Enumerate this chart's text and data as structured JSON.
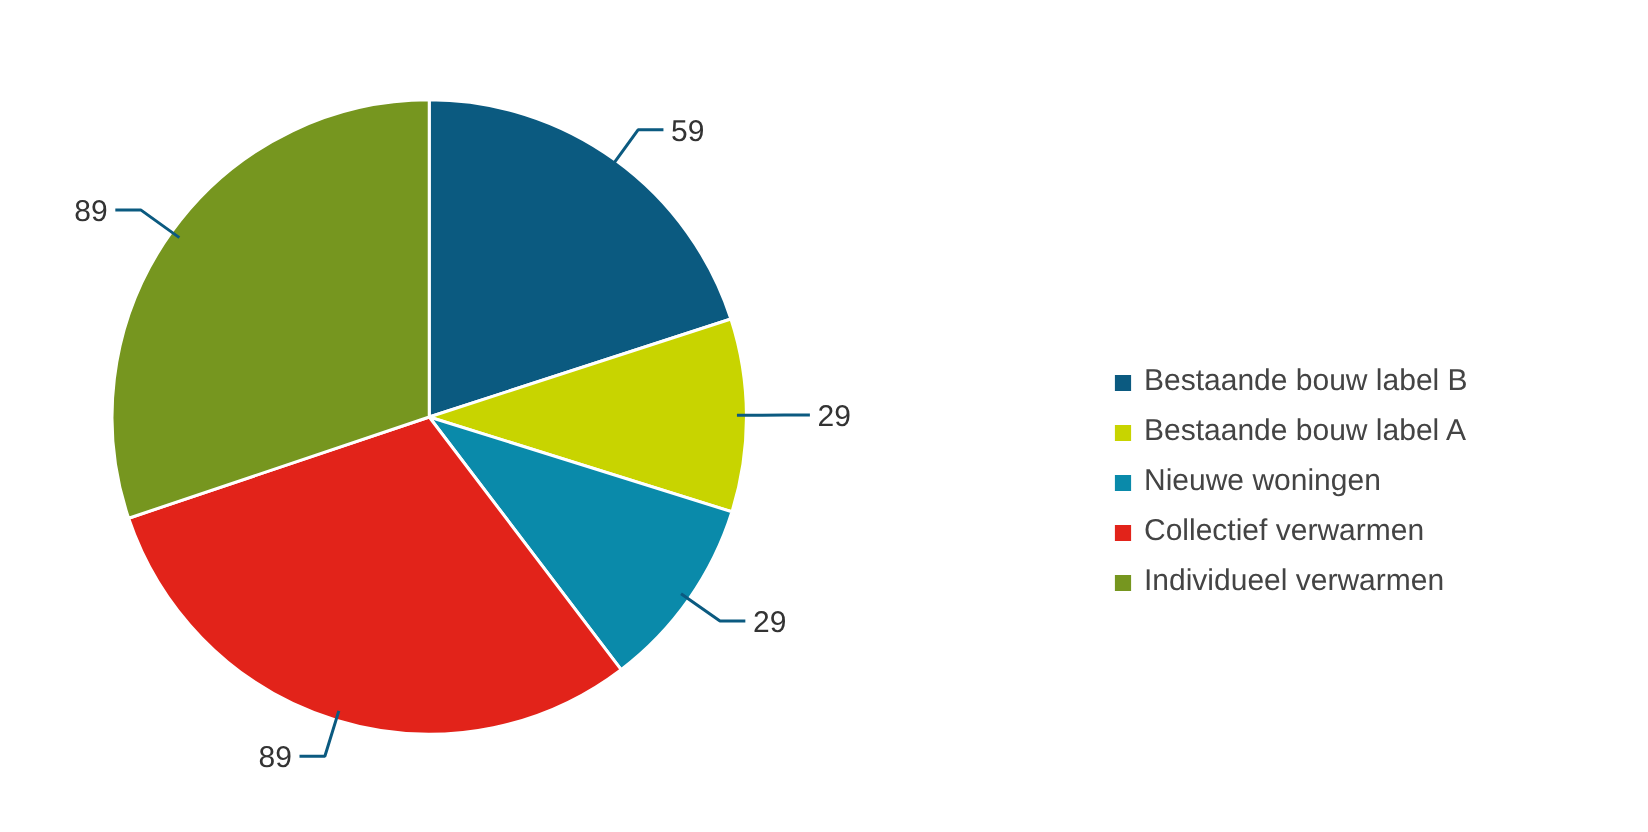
{
  "chart_data": {
    "type": "pie",
    "categories": [
      "Bestaande bouw label B",
      "Bestaande bouw label A",
      "Nieuwe woningen",
      "Collectief verwarmen",
      "Individueel verwarmen"
    ],
    "values": [
      59,
      29,
      29,
      89,
      89
    ],
    "colors": [
      "#0b5a80",
      "#c8d400",
      "#0a8aaa",
      "#e2231a",
      "#76961f"
    ],
    "data_labels": true,
    "legend": "right"
  }
}
